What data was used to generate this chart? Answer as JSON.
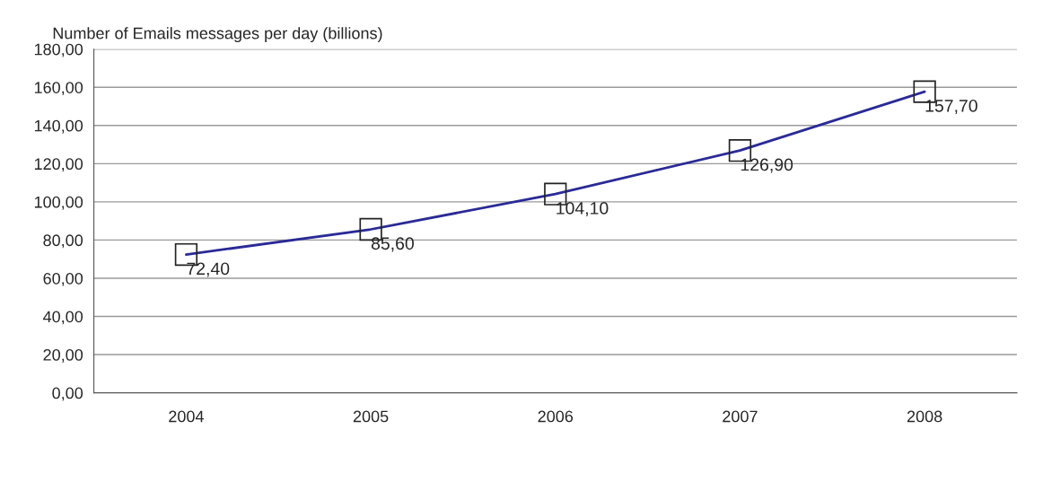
{
  "chart_data": {
    "type": "line",
    "ylabel": "Number of Emails messages per day (billions)",
    "categories": [
      "2004",
      "2005",
      "2006",
      "2007",
      "2008"
    ],
    "series": [
      {
        "color": "#2a2a96",
        "values": [
          72.4,
          85.6,
          104.1,
          126.9,
          157.7
        ],
        "value_labels": [
          "72,40",
          "85,60",
          "104,10",
          "126,90",
          "157,70"
        ]
      }
    ],
    "ylim": [
      0,
      180
    ],
    "yticks": [
      {
        "value": 0,
        "label": "0,00"
      },
      {
        "value": 20,
        "label": "20,00"
      },
      {
        "value": 40,
        "label": "40,00"
      },
      {
        "value": 60,
        "label": "60,00"
      },
      {
        "value": 80,
        "label": "80,00"
      },
      {
        "value": 100,
        "label": "100,00"
      },
      {
        "value": 120,
        "label": "120,00"
      },
      {
        "value": 140,
        "label": "140,00"
      },
      {
        "value": 160,
        "label": "160,00"
      },
      {
        "value": 180,
        "label": "180,00"
      }
    ],
    "grid": "y",
    "marker": "square",
    "line_style": "solid",
    "legend": false
  }
}
